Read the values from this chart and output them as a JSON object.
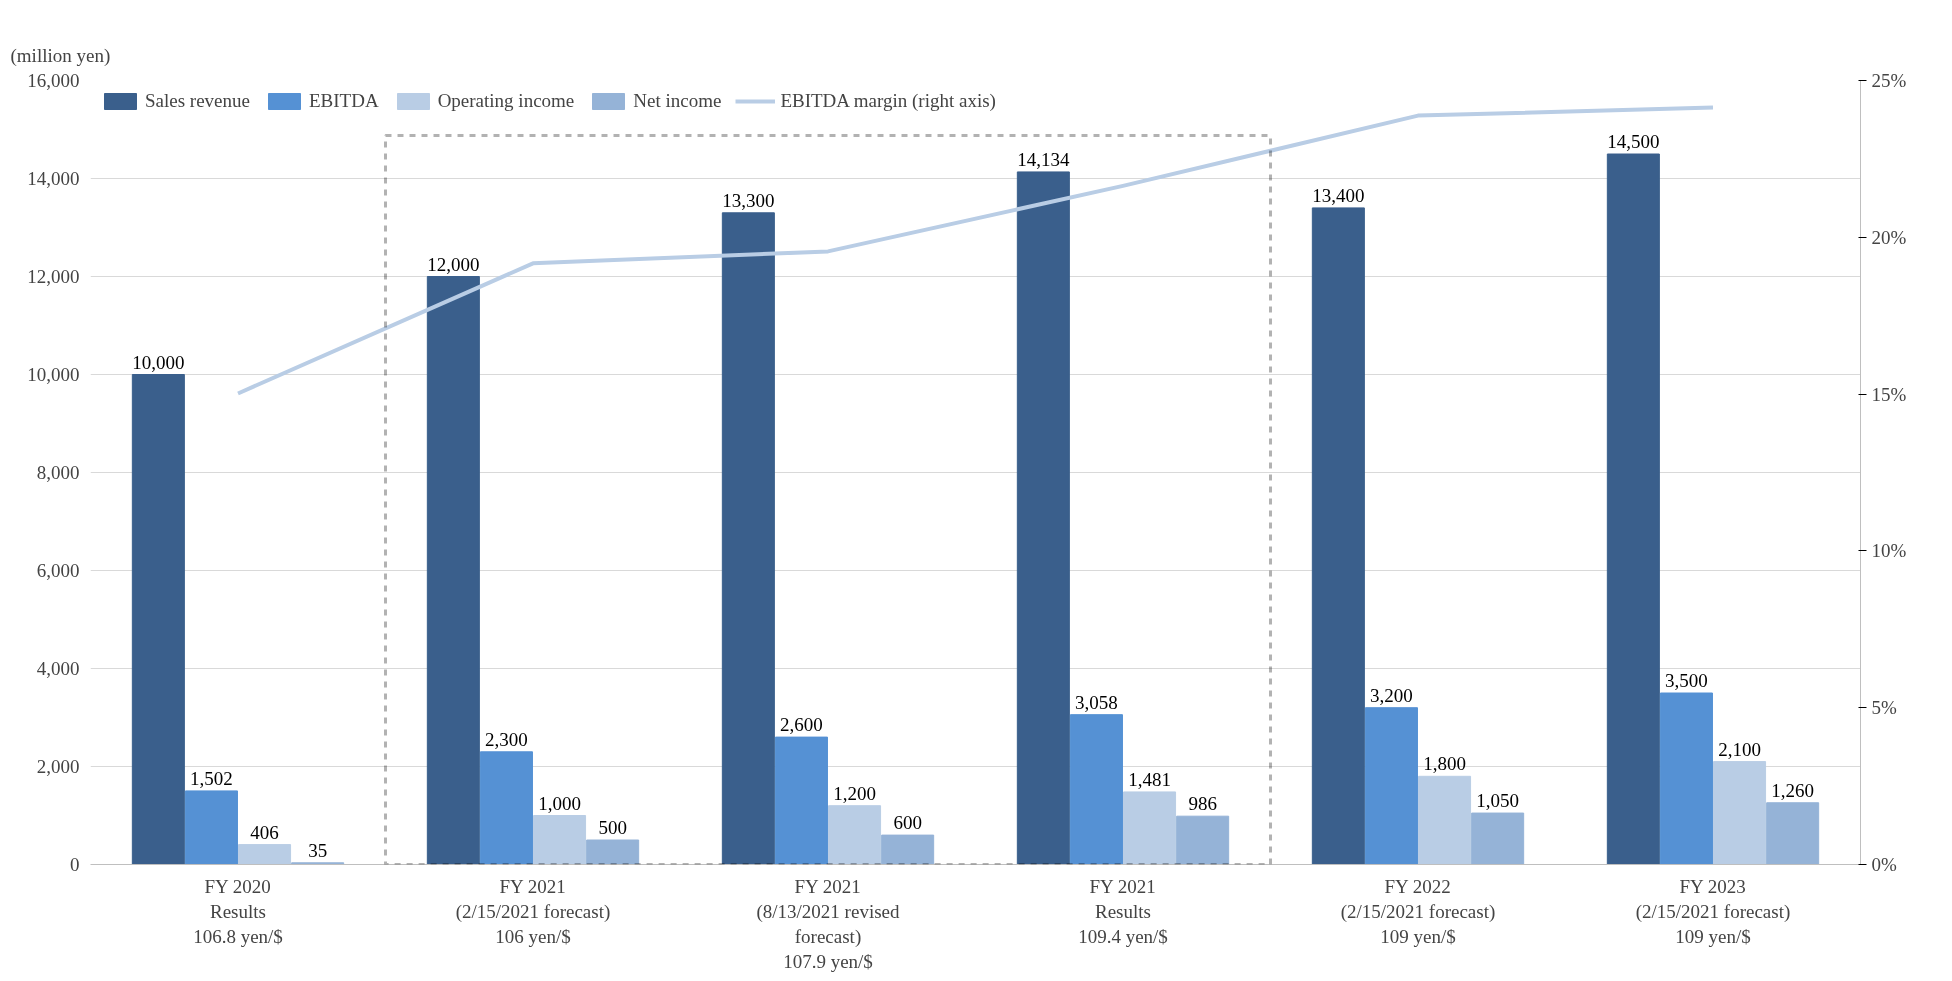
{
  "chart_data": {
    "type": "bar",
    "ylabel": "(million yen)",
    "categories": [
      "FY 2020\nResults\n106.8 yen/$",
      "FY 2021\n(2/15/2021 forecast)\n106 yen/$",
      "FY 2021\n(8/13/2021 revised\nforecast)\n107.9 yen/$",
      "FY 2021\nResults\n109.4 yen/$",
      "FY 2022\n(2/15/2021 forecast)\n109 yen/$",
      "FY 2023\n(2/15/2021 forecast)\n109 yen/$"
    ],
    "series": [
      {
        "name": "Sales revenue",
        "color": "#3a5f8c",
        "values": [
          10000,
          12000,
          13300,
          14134,
          13400,
          14500
        ],
        "value_labels": [
          "10,000",
          "12,000",
          "13,300",
          "14,134",
          "13,400",
          "14,500"
        ]
      },
      {
        "name": "EBITDA",
        "color": "#5591d4",
        "values": [
          1502,
          2300,
          2600,
          3058,
          3200,
          3500
        ],
        "value_labels": [
          "1,502",
          "2,300",
          "2,600",
          "3,058",
          "3,200",
          "3,500"
        ]
      },
      {
        "name": "Operating income",
        "color": "#b9cde5",
        "values": [
          406,
          1000,
          1200,
          1481,
          1800,
          2100
        ],
        "value_labels": [
          "406",
          "1,000",
          "1,200",
          "1,481",
          "1,800",
          "2,100"
        ]
      },
      {
        "name": "Net income",
        "color": "#95b3d7",
        "values": [
          35,
          500,
          600,
          986,
          1050,
          1260
        ],
        "value_labels": [
          "35",
          "500",
          "600",
          "986",
          "1,050",
          "1,260"
        ]
      },
      {
        "name": "EBITDA margin (right axis)",
        "type": "line",
        "axis": "y2",
        "color": "#b9cde5",
        "values": [
          15.02,
          19.17,
          19.55,
          21.64,
          23.88,
          24.14
        ]
      }
    ],
    "ylim": [
      0,
      16000
    ],
    "yticks": [
      {
        "value": 0,
        "label": "0"
      },
      {
        "value": 2000,
        "label": "2,000"
      },
      {
        "value": 4000,
        "label": "4,000"
      },
      {
        "value": 6000,
        "label": "6,000"
      },
      {
        "value": 8000,
        "label": "8,000"
      },
      {
        "value": 10000,
        "label": "10,000"
      },
      {
        "value": 12000,
        "label": "12,000"
      },
      {
        "value": 14000,
        "label": "14,000"
      },
      {
        "value": 16000,
        "label": "16,000"
      }
    ],
    "y2lim": [
      0,
      25
    ],
    "y2ticks": [
      {
        "value": 0,
        "label": "0%"
      },
      {
        "value": 5,
        "label": "5%"
      },
      {
        "value": 10,
        "label": "10%"
      },
      {
        "value": 15,
        "label": "15%"
      },
      {
        "value": 20,
        "label": "20%"
      },
      {
        "value": 25,
        "label": "25%"
      }
    ],
    "grid": "y",
    "legend": "top left",
    "marker": "none",
    "line_style": "solid"
  }
}
